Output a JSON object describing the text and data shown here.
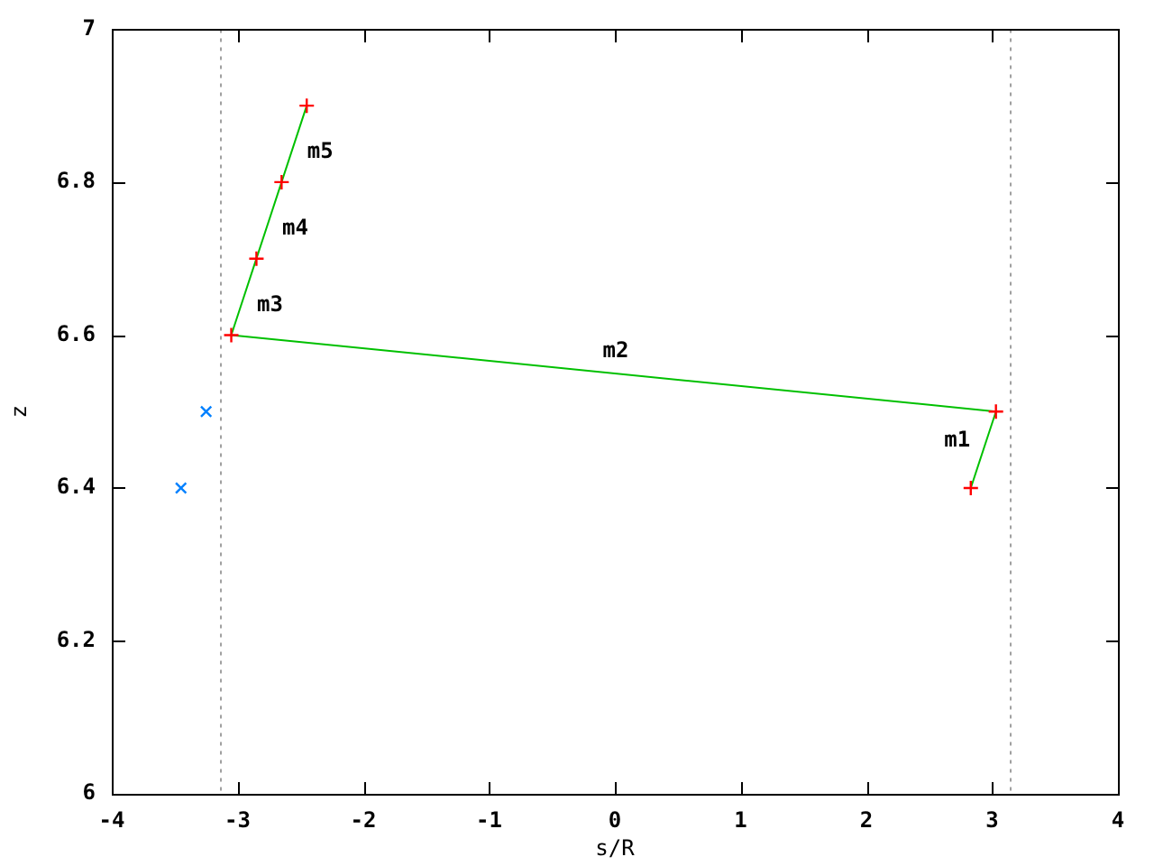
{
  "chart_data": {
    "type": "line",
    "xlabel": "s/R",
    "ylabel": "z",
    "xlim": [
      -4,
      4
    ],
    "xticks": [
      -4,
      -3,
      -2,
      -1,
      0,
      1,
      2,
      3,
      4
    ],
    "ylim": [
      6,
      7
    ],
    "yticks": [
      6,
      6.2,
      6.4,
      6.6,
      6.8,
      7
    ],
    "series": [
      {
        "color": "#00c000",
        "x": [
          2.83,
          3.03,
          -3.05,
          -2.85,
          -2.65,
          -2.45
        ],
        "values": [
          6.4,
          6.5,
          6.6,
          6.7,
          6.8,
          6.9
        ]
      },
      {
        "type": "scatter",
        "color": "#ff0000",
        "marker": "cross",
        "x": [
          2.83,
          3.03,
          -3.05,
          -2.85,
          -2.65,
          -2.45
        ],
        "values": [
          6.4,
          6.5,
          6.6,
          6.7,
          6.8,
          6.9
        ]
      },
      {
        "type": "scatter",
        "color": "#0080ff",
        "marker": "x",
        "x": [
          -3.25,
          -3.45
        ],
        "values": [
          6.5,
          6.4
        ]
      }
    ],
    "ref_lines": [
      {
        "axis": "x",
        "value": -3.14,
        "color": "#a0a0a0",
        "line_style": "dotted"
      },
      {
        "axis": "x",
        "value": 3.14,
        "color": "#a0a0a0",
        "line_style": "dotted"
      }
    ],
    "annotations": [
      "m1",
      "m2",
      "m3",
      "m4",
      "m5"
    ]
  }
}
